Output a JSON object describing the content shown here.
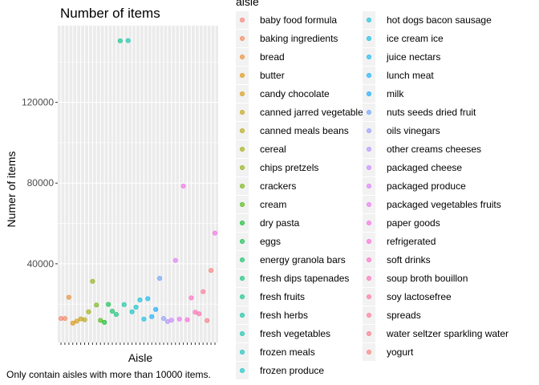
{
  "chart_data": {
    "type": "scatter",
    "title": "Number of items",
    "xlabel": "Aisle",
    "ylabel": "Numer of items",
    "caption": "Only contain aisles with more than 10000 items.",
    "legend_title": "aisle",
    "legend_position": "right",
    "grid": true,
    "ylim": [
      1000,
      158000
    ],
    "y_ticks": [
      40000,
      80000,
      120000
    ],
    "y_tick_labels": [
      "40000",
      "80000",
      "120000"
    ],
    "x_tick_labels_shown": false,
    "categories": [
      "baby food formula",
      "baking ingredients",
      "bread",
      "butter",
      "candy chocolate",
      "canned jarred vegetables",
      "canned meals beans",
      "cereal",
      "chips pretzels",
      "crackers",
      "cream",
      "dry pasta",
      "eggs",
      "energy granola bars",
      "fresh dips tapenades",
      "fresh fruits",
      "fresh herbs",
      "fresh vegetables",
      "frozen meals",
      "frozen produce",
      "hot dogs bacon sausage",
      "ice cream ice",
      "juice nectars",
      "lunch meat",
      "milk",
      "nuts seeds dried fruit",
      "oils vinegars",
      "other creams cheeses",
      "packaged cheese",
      "packaged produce",
      "packaged vegetables fruits",
      "paper goods",
      "refrigerated",
      "soft drinks",
      "soup broth bouillon",
      "soy lactosefree",
      "spreads",
      "water seltzer sparkling water",
      "yogurt"
    ],
    "values": [
      12900,
      12900,
      23400,
      10600,
      11600,
      12700,
      12300,
      16200,
      31300,
      19600,
      12000,
      11000,
      19900,
      16500,
      14900,
      150500,
      19800,
      150600,
      16200,
      18500,
      22100,
      12600,
      22700,
      13800,
      17400,
      32800,
      12900,
      11400,
      12100,
      41700,
      12600,
      78500,
      12300,
      23100,
      16000,
      15200,
      26200,
      11900,
      36700
    ],
    "extra_point": {
      "value": 55200
    },
    "colors": [
      "#F8766D",
      "#F17E4B",
      "#E88526",
      "#DE8C00",
      "#D19400",
      "#C19B00",
      "#B0A100",
      "#9DA700",
      "#87AC00",
      "#6BB100",
      "#45B400",
      "#00B81F",
      "#00BA43",
      "#00BC5C",
      "#00BE71",
      "#00C085",
      "#00C097",
      "#00C1A8",
      "#00C0B9",
      "#00BFC4",
      "#00BCD6",
      "#00B8E5",
      "#00B4F0",
      "#00ADFA",
      "#00A5FF",
      "#619CFF",
      "#8E94FF",
      "#AC8BFF",
      "#C77CFF",
      "#DB72FB",
      "#E76BF3",
      "#F564E3",
      "#FC61D5",
      "#FF61C3",
      "#FF63B6",
      "#FF67A4",
      "#FF6C91",
      "#F8717D",
      "#F8766D"
    ],
    "panel_background": "#EBEBEB",
    "gridline_color": "#FFFFFF"
  }
}
